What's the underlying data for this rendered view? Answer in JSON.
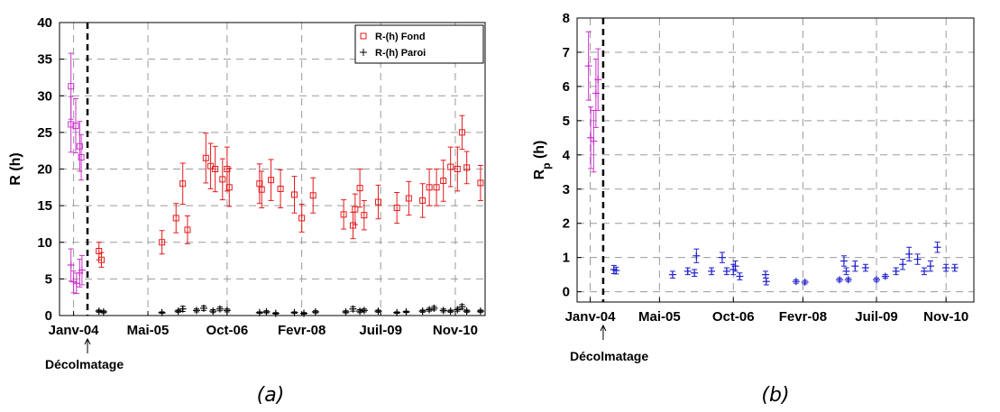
{
  "chart_data": [
    {
      "type": "scatter",
      "caption": "(a)",
      "ylabel": "R (h)",
      "ylim": [
        0,
        40
      ],
      "yticks": [
        0,
        5,
        10,
        15,
        20,
        25,
        30,
        35,
        40
      ],
      "xlim": [
        "2003-10-01",
        "2011-05-15"
      ],
      "xticks": [
        {
          "date": "2004-01-01",
          "label": "Janv-04"
        },
        {
          "date": "2005-05-01",
          "label": "Mai-05"
        },
        {
          "date": "2006-10-01",
          "label": "Oct-06"
        },
        {
          "date": "2008-02-01",
          "label": "Fevr-08"
        },
        {
          "date": "2009-07-01",
          "label": "Juil-09"
        },
        {
          "date": "2010-11-01",
          "label": "Nov-10"
        }
      ],
      "grid": true,
      "legend_position": "top-right",
      "event": {
        "date": "2004-04-01",
        "label": "Décolmatage"
      },
      "series": [
        {
          "name": "R-(h) Fond",
          "marker": "square",
          "color": "#e41a1c",
          "points": [
            {
              "x": "2004-06-15",
              "y": 8.8,
              "err": 1.2
            },
            {
              "x": "2004-07-01",
              "y": 7.6,
              "err": 1.0
            },
            {
              "x": "2005-08-01",
              "y": 10.0,
              "err": 1.6
            },
            {
              "x": "2005-11-01",
              "y": 13.3,
              "err": 2.0
            },
            {
              "x": "2005-12-15",
              "y": 18.0,
              "err": 2.8
            },
            {
              "x": "2006-01-15",
              "y": 11.7,
              "err": 1.9
            },
            {
              "x": "2006-05-15",
              "y": 21.5,
              "err": 3.4
            },
            {
              "x": "2006-06-15",
              "y": 20.4,
              "err": 3.1
            },
            {
              "x": "2006-07-15",
              "y": 20.0,
              "err": 3.1
            },
            {
              "x": "2006-09-01",
              "y": 18.6,
              "err": 2.8
            },
            {
              "x": "2006-10-01",
              "y": 20.0,
              "err": 3.0
            },
            {
              "x": "2006-10-15",
              "y": 17.5,
              "err": 2.6
            },
            {
              "x": "2007-05-01",
              "y": 18.0,
              "err": 2.7
            },
            {
              "x": "2007-05-15",
              "y": 17.2,
              "err": 2.5
            },
            {
              "x": "2007-07-15",
              "y": 18.5,
              "err": 2.8
            },
            {
              "x": "2007-09-15",
              "y": 17.3,
              "err": 2.6
            },
            {
              "x": "2007-12-15",
              "y": 16.5,
              "err": 2.5
            },
            {
              "x": "2008-02-01",
              "y": 13.3,
              "err": 1.9
            },
            {
              "x": "2008-04-15",
              "y": 16.4,
              "err": 2.4
            },
            {
              "x": "2008-11-01",
              "y": 13.8,
              "err": 2.0
            },
            {
              "x": "2009-01-01",
              "y": 12.3,
              "err": 1.8
            },
            {
              "x": "2009-01-15",
              "y": 14.5,
              "err": 2.1
            },
            {
              "x": "2009-02-15",
              "y": 17.4,
              "err": 2.6
            },
            {
              "x": "2009-03-15",
              "y": 13.7,
              "err": 2.0
            },
            {
              "x": "2009-06-15",
              "y": 15.5,
              "err": 2.3
            },
            {
              "x": "2009-10-15",
              "y": 14.7,
              "err": 2.1
            },
            {
              "x": "2010-01-01",
              "y": 16.0,
              "err": 2.3
            },
            {
              "x": "2010-04-01",
              "y": 15.7,
              "err": 2.3
            },
            {
              "x": "2010-05-15",
              "y": 17.5,
              "err": 2.5
            },
            {
              "x": "2010-07-01",
              "y": 17.5,
              "err": 2.5
            },
            {
              "x": "2010-08-15",
              "y": 18.4,
              "err": 2.8
            },
            {
              "x": "2010-10-01",
              "y": 20.3,
              "err": 2.7
            },
            {
              "x": "2010-11-15",
              "y": 20.0,
              "err": 3.0
            },
            {
              "x": "2010-12-15",
              "y": 25.0,
              "err": 2.3
            },
            {
              "x": "2011-01-15",
              "y": 20.2,
              "err": 2.2
            },
            {
              "x": "2011-04-15",
              "y": 18.1,
              "err": 2.4
            }
          ]
        },
        {
          "name": "R-(h) Paroi",
          "marker": "plus",
          "color": "#000000",
          "points": [
            {
              "x": "2004-06-15",
              "y": 0.6,
              "err": 0.15
            },
            {
              "x": "2004-07-15",
              "y": 0.5,
              "err": 0.15
            },
            {
              "x": "2005-08-01",
              "y": 0.4,
              "err": 0.1
            },
            {
              "x": "2005-11-15",
              "y": 0.6,
              "err": 0.15
            },
            {
              "x": "2005-12-15",
              "y": 0.9,
              "err": 0.35
            },
            {
              "x": "2006-03-15",
              "y": 0.7,
              "err": 0.2
            },
            {
              "x": "2006-05-01",
              "y": 1.0,
              "err": 0.3
            },
            {
              "x": "2006-07-01",
              "y": 0.6,
              "err": 0.2
            },
            {
              "x": "2006-08-15",
              "y": 0.9,
              "err": 0.25
            },
            {
              "x": "2006-10-01",
              "y": 0.7,
              "err": 0.2
            },
            {
              "x": "2007-05-01",
              "y": 0.4,
              "err": 0.1
            },
            {
              "x": "2007-06-15",
              "y": 0.5,
              "err": 0.15
            },
            {
              "x": "2007-08-15",
              "y": 0.3,
              "err": 0.1
            },
            {
              "x": "2007-12-15",
              "y": 0.4,
              "err": 0.1
            },
            {
              "x": "2008-02-15",
              "y": 0.3,
              "err": 0.1
            },
            {
              "x": "2008-05-01",
              "y": 0.5,
              "err": 0.15
            },
            {
              "x": "2008-11-15",
              "y": 0.5,
              "err": 0.15
            },
            {
              "x": "2009-01-01",
              "y": 0.9,
              "err": 0.3
            },
            {
              "x": "2009-02-15",
              "y": 0.6,
              "err": 0.2
            },
            {
              "x": "2009-03-15",
              "y": 0.7,
              "err": 0.2
            },
            {
              "x": "2009-06-15",
              "y": 0.6,
              "err": 0.15
            },
            {
              "x": "2009-10-15",
              "y": 0.4,
              "err": 0.1
            },
            {
              "x": "2009-12-15",
              "y": 0.5,
              "err": 0.1
            },
            {
              "x": "2010-04-01",
              "y": 0.6,
              "err": 0.15
            },
            {
              "x": "2010-05-15",
              "y": 0.8,
              "err": 0.2
            },
            {
              "x": "2010-06-15",
              "y": 1.0,
              "err": 0.25
            },
            {
              "x": "2010-08-15",
              "y": 0.7,
              "err": 0.2
            },
            {
              "x": "2010-10-01",
              "y": 0.6,
              "err": 0.15
            },
            {
              "x": "2010-11-15",
              "y": 0.8,
              "err": 0.2
            },
            {
              "x": "2010-12-15",
              "y": 1.2,
              "err": 0.3
            },
            {
              "x": "2011-01-15",
              "y": 0.6,
              "err": 0.15
            },
            {
              "x": "2011-04-15",
              "y": 0.6,
              "err": 0.15
            }
          ]
        },
        {
          "name": "",
          "marker": "square",
          "color": "#cc33cc",
          "points": [
            {
              "x": "2003-12-15",
              "y": 31.3,
              "err": 4.5
            },
            {
              "x": "2003-12-15",
              "y": 26.1,
              "err": 3.8
            },
            {
              "x": "2004-01-15",
              "y": 25.9,
              "err": 3.7
            },
            {
              "x": "2004-02-10",
              "y": 23.1,
              "err": 3.4
            },
            {
              "x": "2004-02-20",
              "y": 21.6,
              "err": 3.1
            }
          ]
        },
        {
          "name": "",
          "marker": "plus",
          "color": "#cc33cc",
          "points": [
            {
              "x": "2003-12-15",
              "y": 6.9,
              "err": 2.2
            },
            {
              "x": "2004-01-01",
              "y": 4.6,
              "err": 1.5
            },
            {
              "x": "2004-01-20",
              "y": 4.4,
              "err": 1.4
            },
            {
              "x": "2004-02-10",
              "y": 5.8,
              "err": 1.9
            },
            {
              "x": "2004-02-25",
              "y": 6.2,
              "err": 2.0
            }
          ]
        }
      ]
    },
    {
      "type": "scatter",
      "caption": "(b)",
      "ylabel": "R",
      "ylabel_sub": "p",
      "ylabel_suffix": " (h)",
      "ylim": [
        -0.3,
        8
      ],
      "yticks": [
        0,
        1,
        2,
        3,
        4,
        5,
        6,
        7,
        8
      ],
      "xlim": [
        "2003-10-01",
        "2011-05-15"
      ],
      "xticks": [
        {
          "date": "2004-01-01",
          "label": "Janv-04"
        },
        {
          "date": "2005-05-01",
          "label": "Mai-05"
        },
        {
          "date": "2006-10-01",
          "label": "Oct-06"
        },
        {
          "date": "2008-02-01",
          "label": "Fevr-08"
        },
        {
          "date": "2009-07-01",
          "label": "Juil-09"
        },
        {
          "date": "2010-11-01",
          "label": "Nov-10"
        }
      ],
      "grid": true,
      "event": {
        "date": "2004-04-01",
        "label": "Décolmatage"
      },
      "series": [
        {
          "name": "",
          "marker": "plus",
          "color": "#cc33cc",
          "points": [
            {
              "x": "2003-12-20",
              "y": 6.6,
              "err": 1.0
            },
            {
              "x": "2004-01-05",
              "y": 4.5,
              "err": 0.9
            },
            {
              "x": "2004-01-25",
              "y": 4.4,
              "err": 0.9
            },
            {
              "x": "2004-02-10",
              "y": 5.8,
              "err": 1.0
            },
            {
              "x": "2004-02-25",
              "y": 6.2,
              "err": 0.9
            }
          ]
        },
        {
          "name": "",
          "marker": "plus",
          "color": "#1f1fcc",
          "points": [
            {
              "x": "2004-06-15",
              "y": 0.65,
              "err": 0.12
            },
            {
              "x": "2004-07-01",
              "y": 0.62,
              "err": 0.1
            },
            {
              "x": "2005-08-01",
              "y": 0.5,
              "err": 0.1
            },
            {
              "x": "2005-11-15",
              "y": 0.6,
              "err": 0.1
            },
            {
              "x": "2006-01-01",
              "y": 0.55,
              "err": 0.1
            },
            {
              "x": "2006-01-15",
              "y": 1.05,
              "err": 0.2
            },
            {
              "x": "2006-05-01",
              "y": 0.6,
              "err": 0.1
            },
            {
              "x": "2006-07-15",
              "y": 1.0,
              "err": 0.15
            },
            {
              "x": "2006-08-15",
              "y": 0.6,
              "err": 0.1
            },
            {
              "x": "2006-10-01",
              "y": 0.65,
              "err": 0.15
            },
            {
              "x": "2006-10-15",
              "y": 0.75,
              "err": 0.15
            },
            {
              "x": "2006-11-15",
              "y": 0.45,
              "err": 0.1
            },
            {
              "x": "2007-05-15",
              "y": 0.5,
              "err": 0.1
            },
            {
              "x": "2007-05-20",
              "y": 0.3,
              "err": 0.1
            },
            {
              "x": "2007-12-15",
              "y": 0.3,
              "err": 0.05
            },
            {
              "x": "2008-02-15",
              "y": 0.28,
              "err": 0.05
            },
            {
              "x": "2008-10-15",
              "y": 0.35,
              "err": 0.05
            },
            {
              "x": "2008-11-15",
              "y": 0.9,
              "err": 0.15
            },
            {
              "x": "2008-12-01",
              "y": 0.6,
              "err": 0.1
            },
            {
              "x": "2008-12-15",
              "y": 0.35,
              "err": 0.05
            },
            {
              "x": "2009-02-01",
              "y": 0.75,
              "err": 0.15
            },
            {
              "x": "2009-04-15",
              "y": 0.7,
              "err": 0.1
            },
            {
              "x": "2009-07-01",
              "y": 0.35,
              "err": 0.05
            },
            {
              "x": "2009-09-01",
              "y": 0.45,
              "err": 0.05
            },
            {
              "x": "2009-11-15",
              "y": 0.6,
              "err": 0.1
            },
            {
              "x": "2010-01-01",
              "y": 0.8,
              "err": 0.15
            },
            {
              "x": "2010-02-15",
              "y": 1.1,
              "err": 0.2
            },
            {
              "x": "2010-04-15",
              "y": 0.95,
              "err": 0.15
            },
            {
              "x": "2010-06-01",
              "y": 0.6,
              "err": 0.1
            },
            {
              "x": "2010-07-15",
              "y": 0.75,
              "err": 0.15
            },
            {
              "x": "2010-09-01",
              "y": 1.3,
              "err": 0.15
            },
            {
              "x": "2010-11-01",
              "y": 0.7,
              "err": 0.1
            },
            {
              "x": "2011-01-01",
              "y": 0.7,
              "err": 0.1
            }
          ]
        }
      ]
    }
  ]
}
